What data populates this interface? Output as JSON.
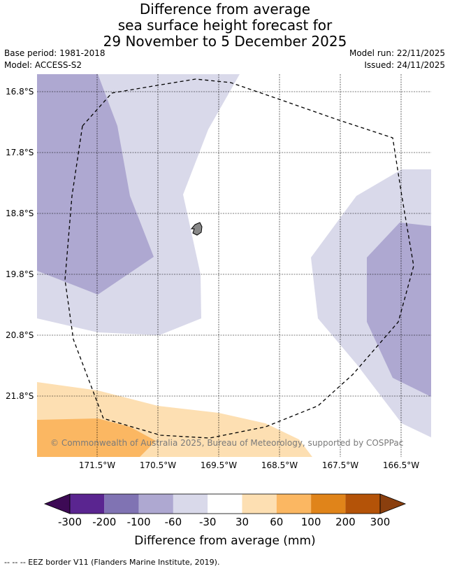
{
  "title": {
    "line1": "Difference from average",
    "line2": "sea surface height forecast for",
    "line3": "29 November to 5 December 2025"
  },
  "meta": {
    "base_period": "Base period: 1981-2018",
    "model": "Model: ACCESS-S2",
    "model_run": "Model run: 22/11/2025",
    "issued": "Issued: 24/11/2025"
  },
  "map": {
    "lat_labels": [
      "16.8°S",
      "17.8°S",
      "18.8°S",
      "19.8°S",
      "20.8°S",
      "21.8°S"
    ],
    "lon_labels": [
      "171.5°W",
      "170.5°W",
      "169.5°W",
      "168.5°W",
      "167.5°W",
      "166.5°W"
    ],
    "copyright": "© Commonwealth of Australia 2025, Bureau of Meteorology, supported by COSPPac"
  },
  "colorbar": {
    "title": "Difference from average (mm)",
    "tick_labels": [
      "-300",
      "-200",
      "-100",
      "-60",
      "-30",
      "30",
      "60",
      "100",
      "200",
      "300"
    ],
    "colors": [
      "#5a2590",
      "#8073b3",
      "#aea8d1",
      "#d9d9ea",
      "#ffffff",
      "#fddfb2",
      "#fbb762",
      "#e0841a",
      "#b45308"
    ],
    "extend_low": "#3d0a55",
    "extend_high": "#8a3f0e"
  },
  "footer": "--  --  -- EEZ border V11 (Flanders Marine Institute, 2019)."
}
